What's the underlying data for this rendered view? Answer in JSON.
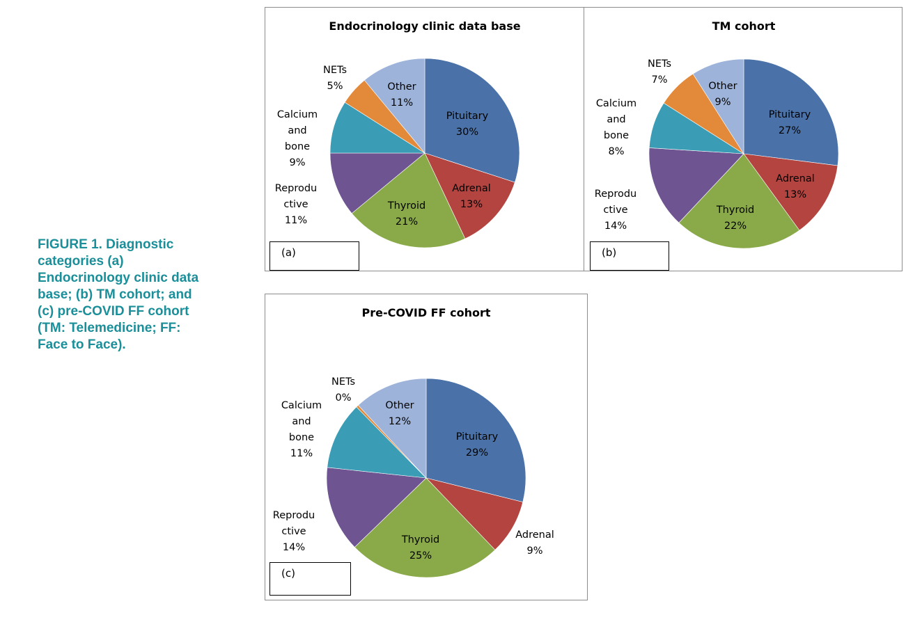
{
  "caption": "FIGURE 1. Diagnostic\ncategories (a)\nEndocrinology clinic data\nbase; (b) TM cohort; and\n(c) pre-COVID FF cohort\n(TM: Telemedicine; FF:\nFace to Face).",
  "colors": {
    "Pituitary": "#4a72a8",
    "Adrenal": "#b34440",
    "Thyroid": "#8aaa4a",
    "Reproductive": "#6e5491",
    "Calcium and bone": "#3a9db5",
    "NETs": "#e3893a",
    "Other": "#9db3d9"
  },
  "chart_data": [
    {
      "type": "pie",
      "id": "a",
      "title": "Endocrinology clinic data base",
      "panel_tag": "(a)",
      "slices": [
        {
          "name": "Pituitary",
          "value": 30,
          "label": [
            "Pituitary",
            "30%"
          ]
        },
        {
          "name": "Adrenal",
          "value": 13,
          "label": [
            "Adrenal",
            "13%"
          ]
        },
        {
          "name": "Thyroid",
          "value": 21,
          "label": [
            "Thyroid",
            "21%"
          ]
        },
        {
          "name": "Reproductive",
          "value": 11,
          "label": [
            "Reprodu",
            "ctive",
            "11%"
          ]
        },
        {
          "name": "Calcium and bone",
          "value": 9,
          "label": [
            "Calcium",
            "and",
            "bone",
            "9%"
          ]
        },
        {
          "name": "NETs",
          "value": 5,
          "label": [
            "NETs",
            "5%"
          ]
        },
        {
          "name": "Other",
          "value": 11,
          "label": [
            "Other",
            "11%"
          ]
        }
      ]
    },
    {
      "type": "pie",
      "id": "b",
      "title": "TM cohort",
      "panel_tag": "(b)",
      "slices": [
        {
          "name": "Pituitary",
          "value": 27,
          "label": [
            "Pituitary",
            "27%"
          ]
        },
        {
          "name": "Adrenal",
          "value": 13,
          "label": [
            "Adrenal",
            "13%"
          ]
        },
        {
          "name": "Thyroid",
          "value": 22,
          "label": [
            "Thyroid",
            "22%"
          ]
        },
        {
          "name": "Reproductive",
          "value": 14,
          "label": [
            "Reprodu",
            "ctive",
            "14%"
          ]
        },
        {
          "name": "Calcium and bone",
          "value": 8,
          "label": [
            "Calcium",
            "and",
            "bone",
            "8%"
          ]
        },
        {
          "name": "NETs",
          "value": 7,
          "label": [
            "NETs",
            "7%"
          ]
        },
        {
          "name": "Other",
          "value": 9,
          "label": [
            "Other",
            "9%"
          ]
        }
      ]
    },
    {
      "type": "pie",
      "id": "c",
      "title": "Pre-COVID FF cohort",
      "panel_tag": "(c)",
      "slices": [
        {
          "name": "Pituitary",
          "value": 29,
          "label": [
            "Pituitary",
            "29%"
          ]
        },
        {
          "name": "Adrenal",
          "value": 9,
          "label": [
            "Adrenal",
            "9%"
          ]
        },
        {
          "name": "Thyroid",
          "value": 25,
          "label": [
            "Thyroid",
            "25%"
          ]
        },
        {
          "name": "Reproductive",
          "value": 14,
          "label": [
            "Reprodu",
            "ctive",
            "14%"
          ]
        },
        {
          "name": "Calcium and bone",
          "value": 11,
          "label": [
            "Calcium",
            "and",
            "bone",
            "11%"
          ]
        },
        {
          "name": "NETs",
          "value": 0.4,
          "label": [
            "NETs",
            "0%"
          ]
        },
        {
          "name": "Other",
          "value": 12,
          "label": [
            "Other",
            "12%"
          ]
        }
      ]
    }
  ]
}
